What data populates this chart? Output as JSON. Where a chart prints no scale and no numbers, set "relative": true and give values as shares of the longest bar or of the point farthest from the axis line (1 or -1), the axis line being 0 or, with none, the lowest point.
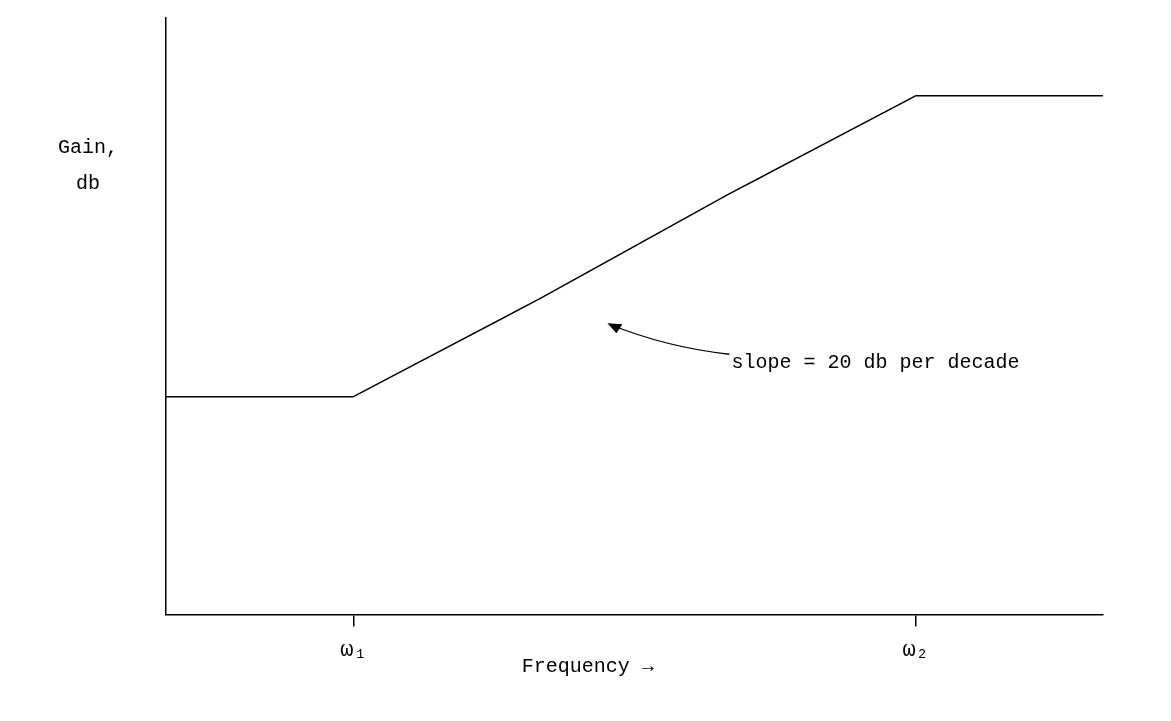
{
  "chart_data": {
    "type": "line",
    "relative": true,
    "xlabel": "Frequency →",
    "ylabel": "Gain,\ndb",
    "categories": [
      null,
      "ω₁",
      null,
      null,
      "ω₂",
      null
    ],
    "series": [
      {
        "color": "#000000",
        "values": [
          0.42,
          0.42,
          0.61,
          0.81,
          1,
          1
        ]
      }
    ],
    "annotations": [
      "slope = 20 db per decade"
    ],
    "grid": false,
    "legend": false,
    "marker": "none",
    "line_style": "solid"
  }
}
